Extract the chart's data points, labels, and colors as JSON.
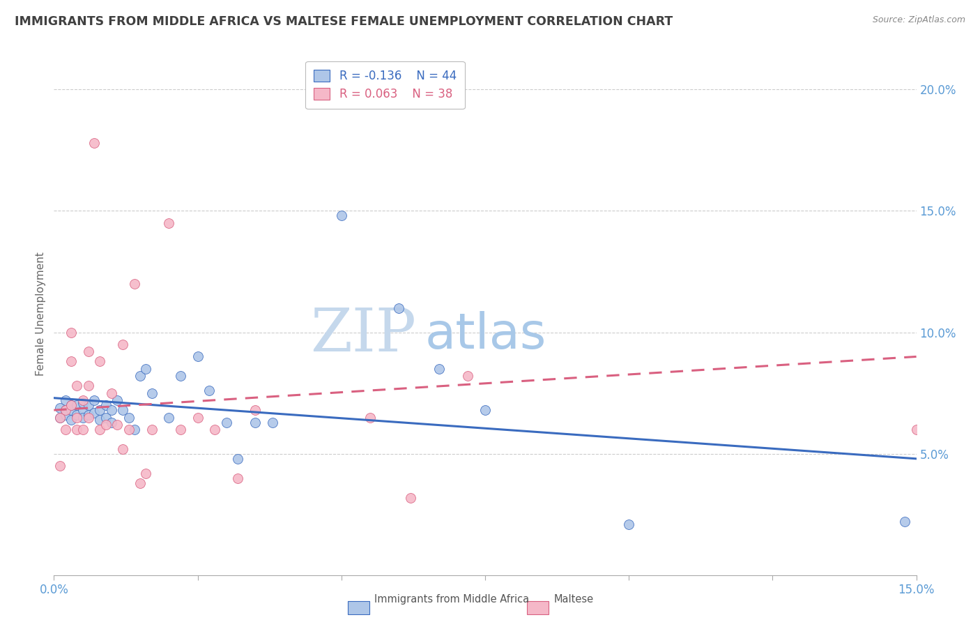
{
  "title": "IMMIGRANTS FROM MIDDLE AFRICA VS MALTESE FEMALE UNEMPLOYMENT CORRELATION CHART",
  "source": "Source: ZipAtlas.com",
  "ylabel": "Female Unemployment",
  "legend_blue_r": "-0.136",
  "legend_blue_n": "44",
  "legend_pink_r": "0.063",
  "legend_pink_n": "38",
  "legend_blue_label": "Immigrants from Middle Africa",
  "legend_pink_label": "Maltese",
  "xlim": [
    0.0,
    0.15
  ],
  "ylim": [
    0.0,
    0.215
  ],
  "yticks": [
    0.05,
    0.1,
    0.15,
    0.2
  ],
  "ytick_labels": [
    "5.0%",
    "10.0%",
    "15.0%",
    "20.0%"
  ],
  "watermark_zip": "ZIP",
  "watermark_atlas": "atlas",
  "blue_color": "#aec6e8",
  "pink_color": "#f5b8c8",
  "blue_line_color": "#3a6bbf",
  "pink_line_color": "#d96080",
  "grid_color": "#cccccc",
  "axis_label_color": "#5b9bd5",
  "title_color": "#404040",
  "scatter_size": 100,
  "blue_scatter_x": [
    0.001,
    0.001,
    0.002,
    0.002,
    0.002,
    0.003,
    0.003,
    0.003,
    0.004,
    0.004,
    0.005,
    0.005,
    0.005,
    0.006,
    0.006,
    0.007,
    0.007,
    0.008,
    0.008,
    0.009,
    0.009,
    0.01,
    0.01,
    0.011,
    0.012,
    0.013,
    0.014,
    0.015,
    0.016,
    0.017,
    0.02,
    0.022,
    0.025,
    0.027,
    0.03,
    0.032,
    0.035,
    0.038,
    0.05,
    0.06,
    0.067,
    0.075,
    0.1,
    0.148
  ],
  "blue_scatter_y": [
    0.069,
    0.065,
    0.068,
    0.066,
    0.072,
    0.068,
    0.07,
    0.064,
    0.07,
    0.066,
    0.068,
    0.065,
    0.071,
    0.066,
    0.07,
    0.067,
    0.072,
    0.068,
    0.064,
    0.065,
    0.07,
    0.068,
    0.063,
    0.072,
    0.068,
    0.065,
    0.06,
    0.082,
    0.085,
    0.075,
    0.065,
    0.082,
    0.09,
    0.076,
    0.063,
    0.048,
    0.063,
    0.063,
    0.148,
    0.11,
    0.085,
    0.068,
    0.021,
    0.022
  ],
  "pink_scatter_x": [
    0.001,
    0.001,
    0.002,
    0.002,
    0.003,
    0.003,
    0.003,
    0.004,
    0.004,
    0.004,
    0.005,
    0.005,
    0.006,
    0.006,
    0.006,
    0.007,
    0.008,
    0.008,
    0.009,
    0.01,
    0.011,
    0.012,
    0.012,
    0.013,
    0.014,
    0.015,
    0.016,
    0.017,
    0.02,
    0.022,
    0.025,
    0.028,
    0.032,
    0.035,
    0.055,
    0.062,
    0.072,
    0.15
  ],
  "pink_scatter_y": [
    0.065,
    0.045,
    0.068,
    0.06,
    0.1,
    0.088,
    0.07,
    0.078,
    0.065,
    0.06,
    0.072,
    0.06,
    0.092,
    0.078,
    0.065,
    0.178,
    0.088,
    0.06,
    0.062,
    0.075,
    0.062,
    0.052,
    0.095,
    0.06,
    0.12,
    0.038,
    0.042,
    0.06,
    0.145,
    0.06,
    0.065,
    0.06,
    0.04,
    0.068,
    0.065,
    0.032,
    0.082,
    0.06
  ],
  "blue_trendline_x": [
    0.0,
    0.15
  ],
  "blue_trendline_y": [
    0.073,
    0.048
  ],
  "pink_trendline_x": [
    0.0,
    0.15
  ],
  "pink_trendline_y": [
    0.068,
    0.09
  ]
}
